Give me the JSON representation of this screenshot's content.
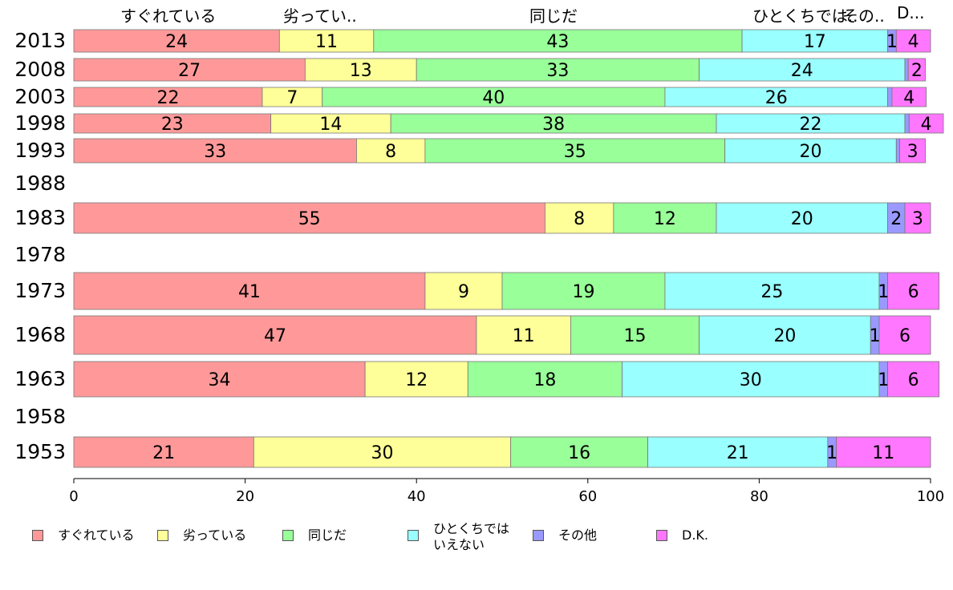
{
  "chart_data": {
    "type": "bar",
    "orientation": "horizontal",
    "stacked": true,
    "top_labels": [
      "すぐれている",
      "劣ってい..",
      "同じだ",
      "ひとくちでは..",
      "その..",
      "D..."
    ],
    "categories": [
      "2013",
      "2008",
      "2003",
      "1998",
      "1993",
      "1988",
      "1983",
      "1978",
      "1973",
      "1968",
      "1963",
      "1958",
      "1953"
    ],
    "series": [
      {
        "name": "すぐれている",
        "color": "#ff9999",
        "values": [
          24,
          27,
          22,
          23,
          33,
          null,
          55,
          null,
          41,
          47,
          34,
          null,
          21
        ]
      },
      {
        "name": "劣っている",
        "color": "#ffff99",
        "values": [
          11,
          13,
          7,
          14,
          8,
          null,
          8,
          null,
          9,
          11,
          12,
          null,
          30
        ]
      },
      {
        "name": "同じだ",
        "color": "#99ff99",
        "values": [
          43,
          33,
          40,
          38,
          35,
          null,
          12,
          null,
          19,
          15,
          18,
          null,
          16
        ]
      },
      {
        "name": "ひとくちでは\nいえない",
        "color": "#99ffff",
        "values": [
          17,
          24,
          26,
          22,
          20,
          null,
          20,
          null,
          25,
          20,
          30,
          null,
          21
        ]
      },
      {
        "name": "その他",
        "color": "#9999ff",
        "values": [
          1,
          0.4,
          0.5,
          0.5,
          0.4,
          null,
          2,
          null,
          1,
          1,
          1,
          null,
          1
        ]
      },
      {
        "name": "D.K.",
        "color": "#ff77ff",
        "values": [
          4,
          2,
          4,
          4,
          3,
          null,
          3,
          null,
          6,
          6,
          6,
          null,
          11
        ]
      }
    ],
    "xlim": [
      0,
      100
    ],
    "xticks": [
      0,
      20,
      40,
      60,
      80,
      100
    ],
    "legend_position": "bottom",
    "grid": false
  }
}
